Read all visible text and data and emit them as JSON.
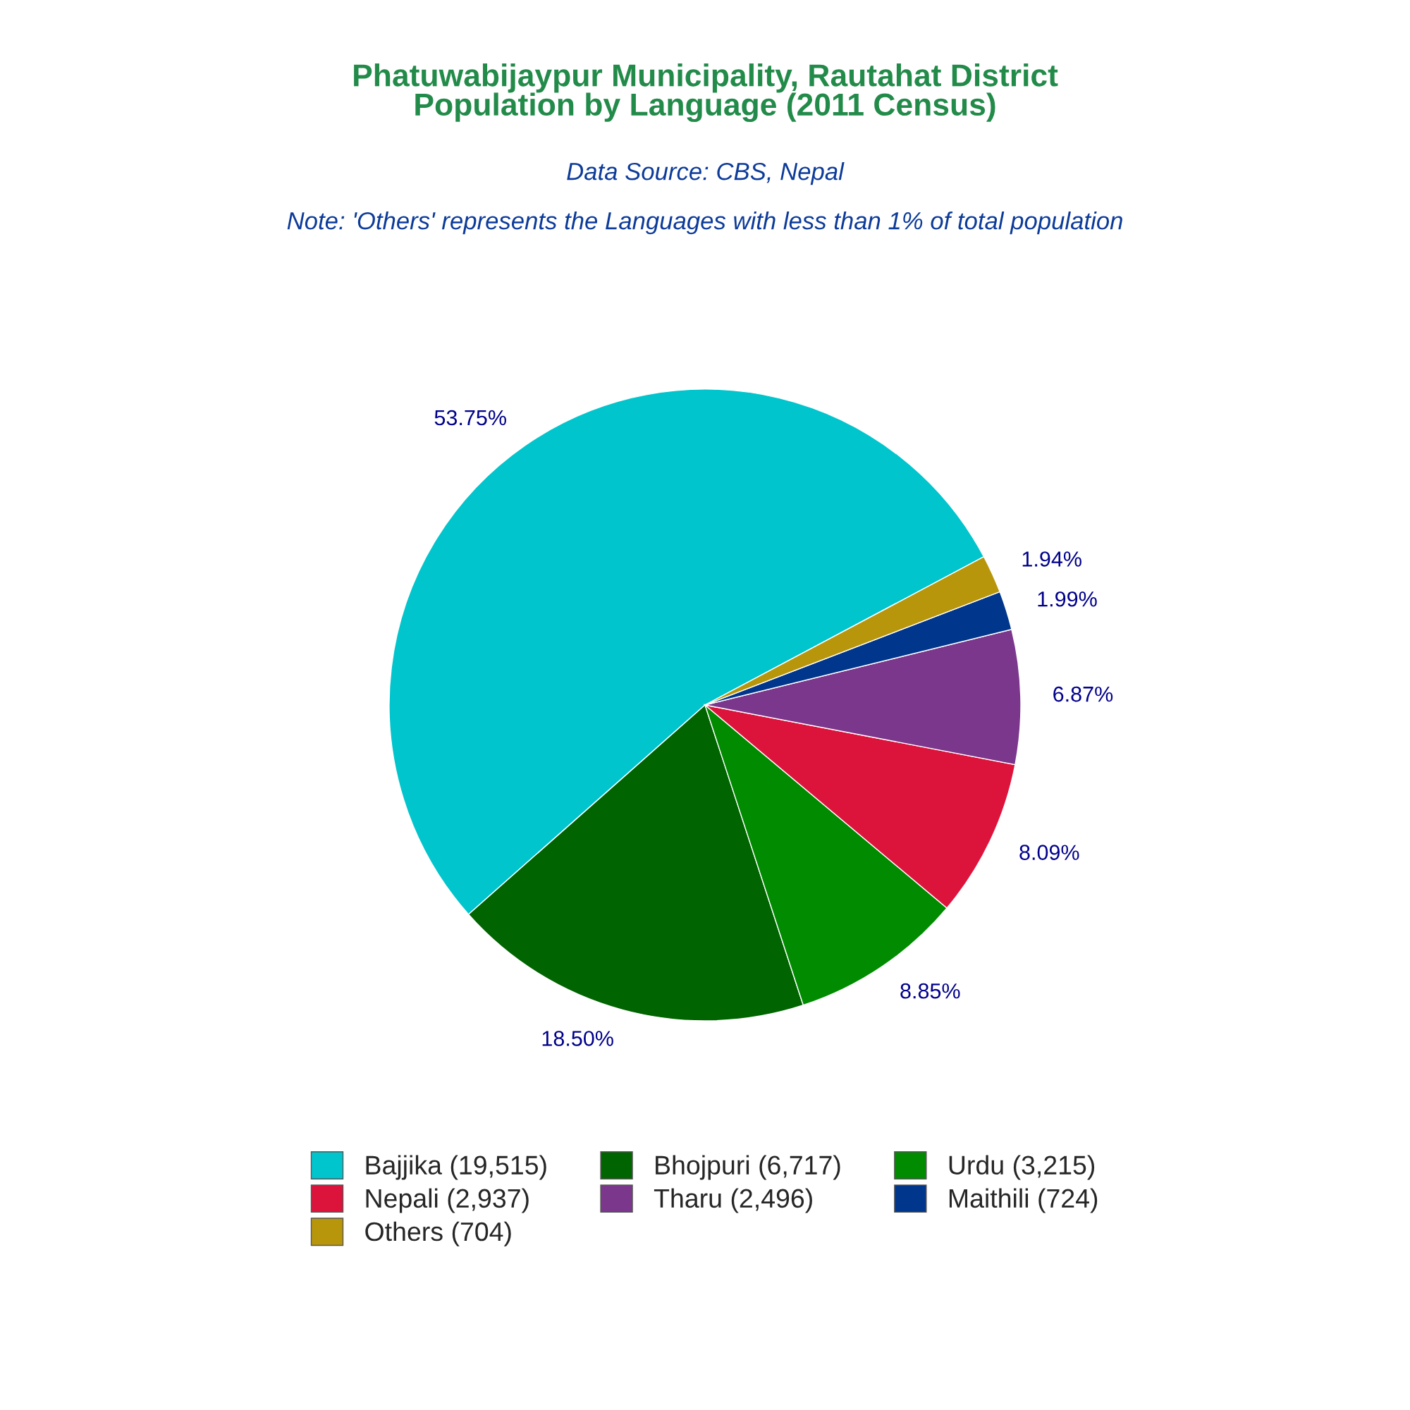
{
  "chart_data": {
    "type": "pie",
    "title": "Phatuwabijaypur Municipality, Rautahat District\nPopulation by Language (2011 Census)",
    "subtitle": "Data Source: CBS, Nepal",
    "annotations": [
      "Note: 'Others' represents the Languages with less than 1% of total population"
    ],
    "categories": [
      "Bajjika (19,515)",
      "Bhojpuri (6,717)",
      "Urdu (3,215)",
      "Nepali (2,937)",
      "Tharu (2,496)",
      "Maithili (724)",
      "Others (704)"
    ],
    "values": [
      53.75,
      18.5,
      8.85,
      8.09,
      6.87,
      1.99,
      1.94
    ],
    "value_labels": [
      "53.75%",
      "18.50%",
      "8.85%",
      "8.09%",
      "6.87%",
      "1.99%",
      "1.94%"
    ],
    "colors": [
      "#00c5cd",
      "#006400",
      "#008b00",
      "#dc143c",
      "#7a378b",
      "#00368b",
      "#b8960b"
    ],
    "legend": "bottom"
  }
}
